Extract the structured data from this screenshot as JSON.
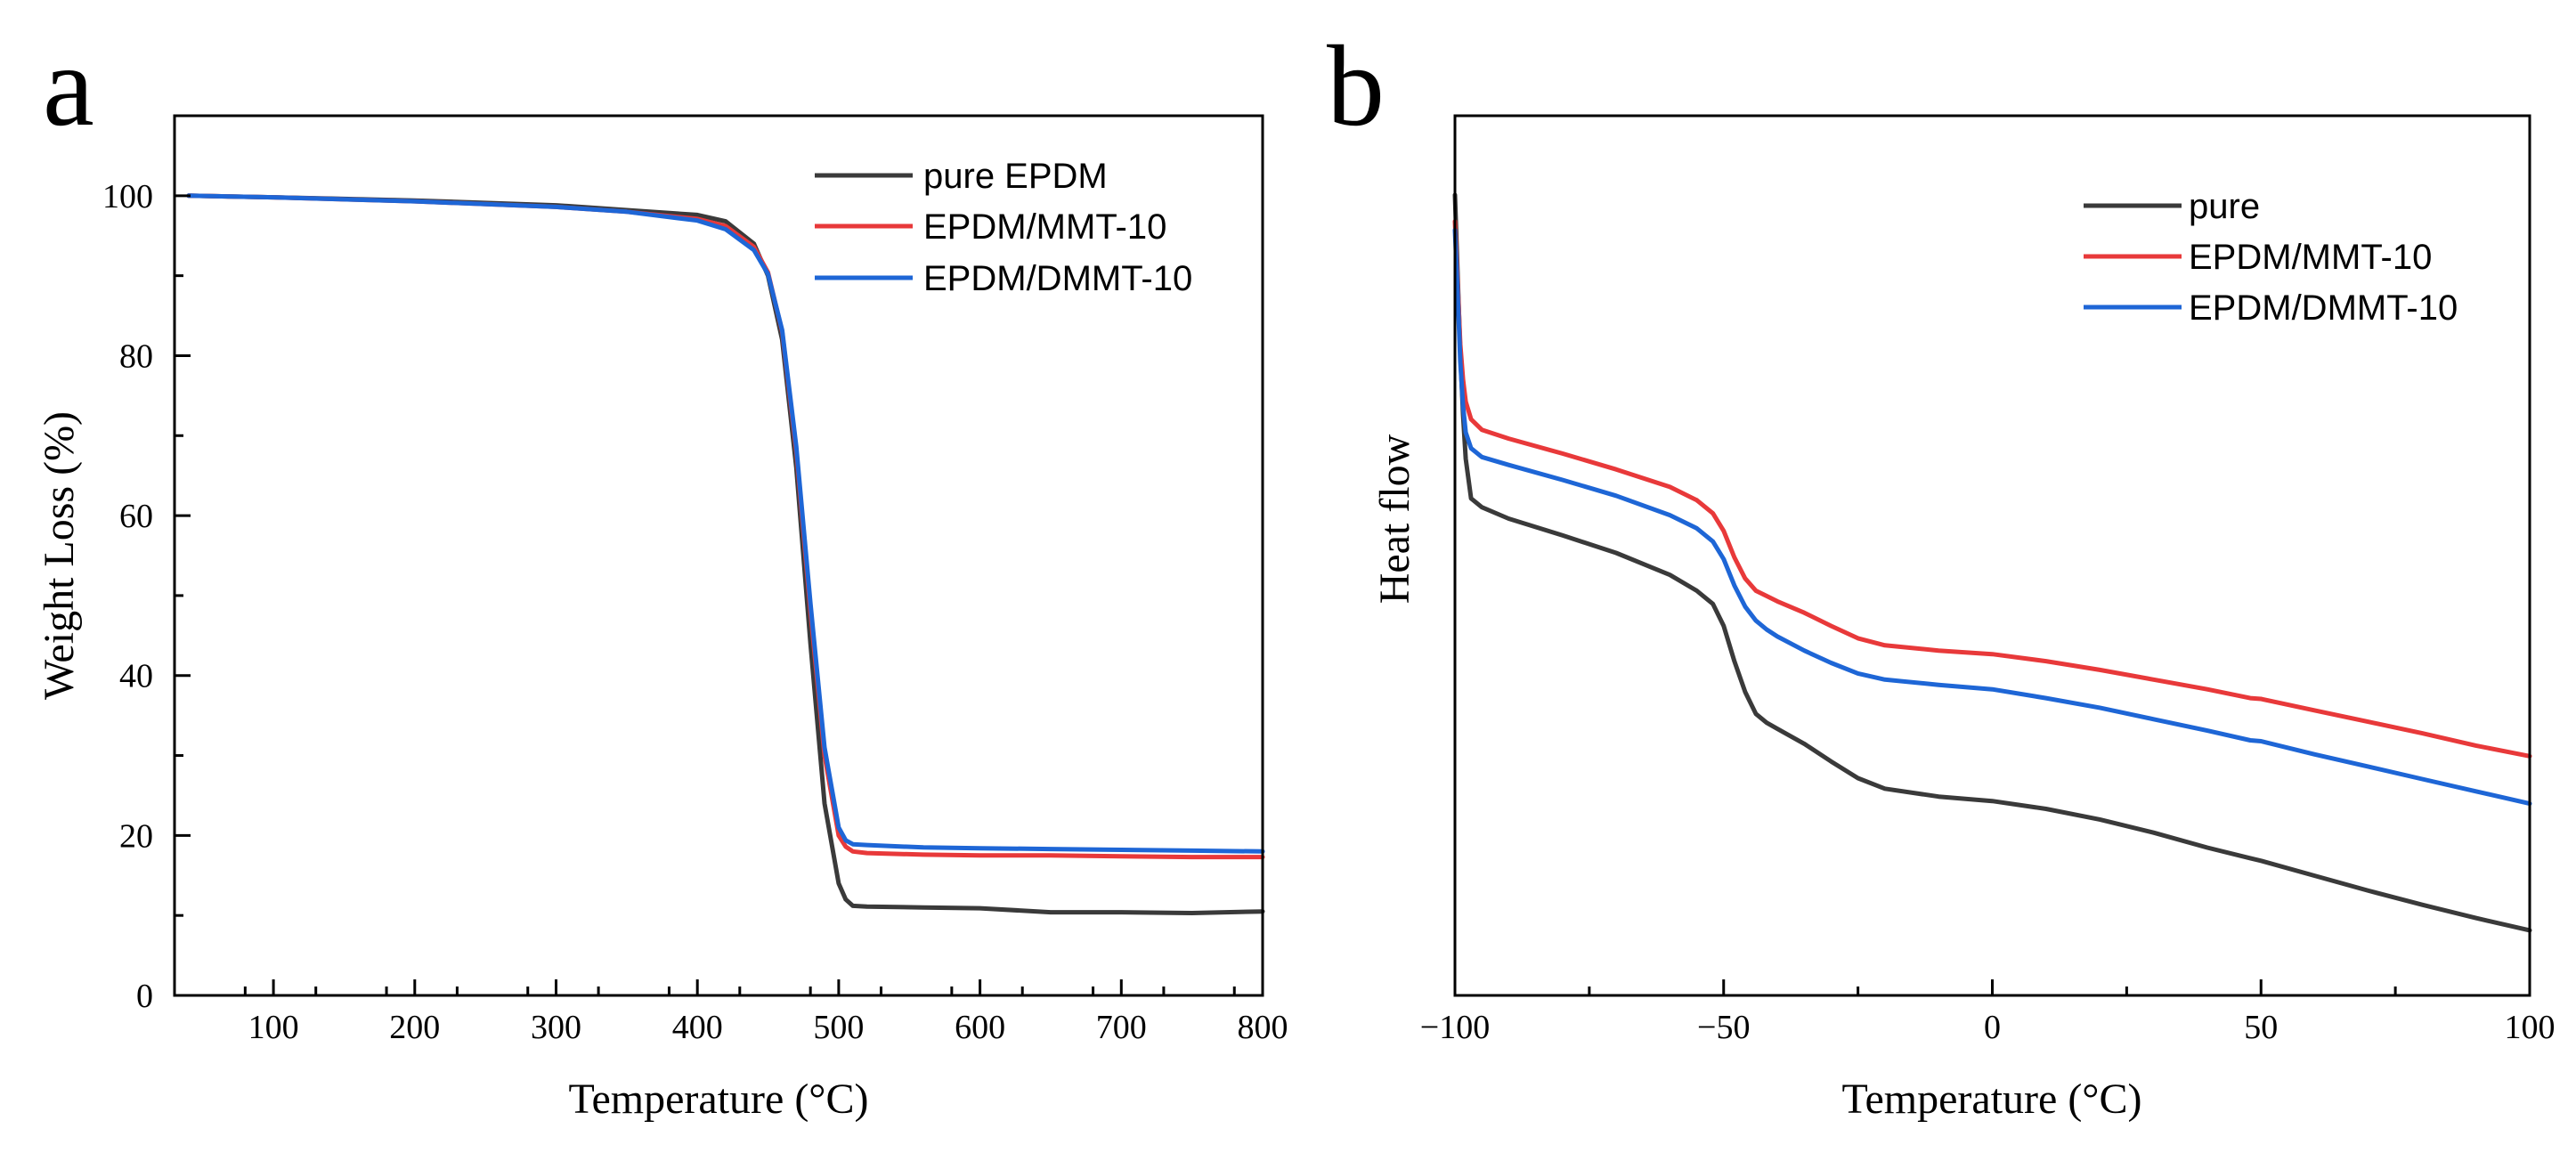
{
  "panels": [
    {
      "letter": "a",
      "xlabel": "Temperature (°C)",
      "ylabel": "Weight Loss (%)",
      "xlim": [
        30,
        800
      ],
      "ylim": [
        0,
        110
      ],
      "xticks": [
        100,
        200,
        300,
        400,
        500,
        600,
        700,
        800
      ],
      "yticks": [
        0,
        20,
        40,
        60,
        80,
        100
      ],
      "show_y_tick_labels": true
    },
    {
      "letter": "b",
      "xlabel": "Temperature (°C)",
      "ylabel": "Heat flow",
      "xlim": [
        -100,
        100
      ],
      "ylim": [
        0,
        100
      ],
      "xticks": [
        -100,
        -50,
        0,
        50,
        100
      ],
      "xtick_labels": [
        "−100",
        "−50",
        "0",
        "50",
        "100"
      ],
      "yticks": [],
      "show_y_tick_labels": false
    }
  ],
  "chart_data": [
    {
      "type": "line",
      "title": "",
      "xlabel": "Temperature (°C)",
      "ylabel": "Weight Loss (%)",
      "xlim": [
        30,
        800
      ],
      "ylim": [
        0,
        110
      ],
      "grid": false,
      "legend": "top-right",
      "series": [
        {
          "name": "pure EPDM",
          "color": "#3a3a3a",
          "x": [
            40,
            100,
            200,
            300,
            350,
            400,
            420,
            440,
            450,
            460,
            470,
            480,
            490,
            500,
            505,
            510,
            520,
            560,
            600,
            650,
            700,
            750,
            800
          ],
          "y": [
            100,
            99.8,
            99.4,
            98.8,
            98.2,
            97.6,
            96.8,
            94,
            90,
            82,
            66,
            44,
            24,
            14,
            12,
            11.2,
            11.1,
            11.0,
            10.9,
            10.4,
            10.4,
            10.3,
            10.5
          ]
        },
        {
          "name": "EPDM/MMT-10",
          "color": "#e8393a",
          "x": [
            40,
            100,
            200,
            300,
            350,
            400,
            420,
            440,
            450,
            460,
            470,
            480,
            490,
            500,
            505,
            510,
            520,
            560,
            600,
            650,
            700,
            750,
            800
          ],
          "y": [
            100,
            99.8,
            99.3,
            98.6,
            98,
            97.1,
            96.2,
            93.6,
            90.4,
            83,
            68,
            48,
            30,
            20,
            18.6,
            18.0,
            17.8,
            17.6,
            17.5,
            17.5,
            17.4,
            17.3,
            17.3
          ]
        },
        {
          "name": "EPDM/DMMT-10",
          "color": "#1e66d6",
          "x": [
            40,
            100,
            200,
            300,
            350,
            400,
            420,
            440,
            450,
            460,
            470,
            480,
            490,
            500,
            505,
            510,
            520,
            560,
            600,
            650,
            700,
            750,
            800
          ],
          "y": [
            100,
            99.8,
            99.3,
            98.6,
            98,
            96.9,
            95.8,
            93.2,
            90.2,
            83.2,
            68.6,
            49,
            31,
            21,
            19.4,
            18.9,
            18.8,
            18.5,
            18.4,
            18.3,
            18.2,
            18.1,
            18.0
          ]
        }
      ]
    },
    {
      "type": "line",
      "title": "",
      "xlabel": "Temperature (°C)",
      "ylabel": "Heat flow",
      "xlim": [
        -100,
        100
      ],
      "ylim": [
        0,
        100
      ],
      "grid": false,
      "legend": "top-right",
      "series": [
        {
          "name": "pure",
          "color": "#3a3a3a",
          "x": [
            -100,
            -99.5,
            -99,
            -98.5,
            -98,
            -97,
            -95,
            -90,
            -80,
            -70,
            -60,
            -55,
            -52,
            -50,
            -48,
            -46,
            -44,
            -42,
            -40,
            -35,
            -30,
            -25,
            -20,
            -10,
            0,
            10,
            20,
            30,
            40,
            48,
            50,
            60,
            70,
            80,
            90,
            100
          ],
          "y": [
            91,
            82,
            73,
            66,
            61,
            56.5,
            55.5,
            54.2,
            52.3,
            50.3,
            47.8,
            46.0,
            44.5,
            42.0,
            38.0,
            34.5,
            32.0,
            31.0,
            30.3,
            28.6,
            26.6,
            24.7,
            23.5,
            22.6,
            22.1,
            21.2,
            20.0,
            18.5,
            16.8,
            15.6,
            15.3,
            13.6,
            11.9,
            10.3,
            8.8,
            7.4
          ]
        },
        {
          "name": "EPDM/MMT-10",
          "color": "#e8393a",
          "x": [
            -100,
            -99.5,
            -99,
            -98.5,
            -98,
            -97,
            -95,
            -90,
            -80,
            -70,
            -60,
            -55,
            -52,
            -50,
            -48,
            -46,
            -44,
            -42,
            -40,
            -35,
            -30,
            -25,
            -20,
            -10,
            0,
            10,
            20,
            30,
            40,
            48,
            50,
            60,
            70,
            80,
            90,
            100
          ],
          "y": [
            88,
            81,
            74,
            70,
            67.5,
            65.5,
            64.3,
            63.3,
            61.6,
            59.8,
            57.8,
            56.3,
            54.8,
            52.8,
            49.8,
            47.4,
            46.0,
            45.4,
            44.8,
            43.5,
            42.0,
            40.6,
            39.8,
            39.2,
            38.8,
            38.0,
            37.0,
            35.9,
            34.8,
            33.8,
            33.7,
            32.4,
            31.1,
            29.8,
            28.4,
            27.2
          ]
        },
        {
          "name": "EPDM/DMMT-10",
          "color": "#1e66d6",
          "x": [
            -100,
            -99.5,
            -99,
            -98.5,
            -98,
            -97,
            -95,
            -90,
            -80,
            -70,
            -60,
            -55,
            -52,
            -50,
            -48,
            -46,
            -44,
            -42,
            -40,
            -35,
            -30,
            -25,
            -20,
            -10,
            0,
            10,
            20,
            30,
            40,
            48,
            50,
            60,
            70,
            80,
            90,
            100
          ],
          "y": [
            87,
            80,
            72,
            67,
            64,
            62.2,
            61.2,
            60.3,
            58.6,
            56.8,
            54.6,
            53.1,
            51.6,
            49.6,
            46.6,
            44.2,
            42.6,
            41.6,
            40.8,
            39.2,
            37.8,
            36.6,
            35.9,
            35.3,
            34.8,
            33.8,
            32.7,
            31.4,
            30.1,
            29.0,
            28.9,
            27.4,
            26.0,
            24.6,
            23.2,
            21.8
          ]
        }
      ]
    }
  ]
}
